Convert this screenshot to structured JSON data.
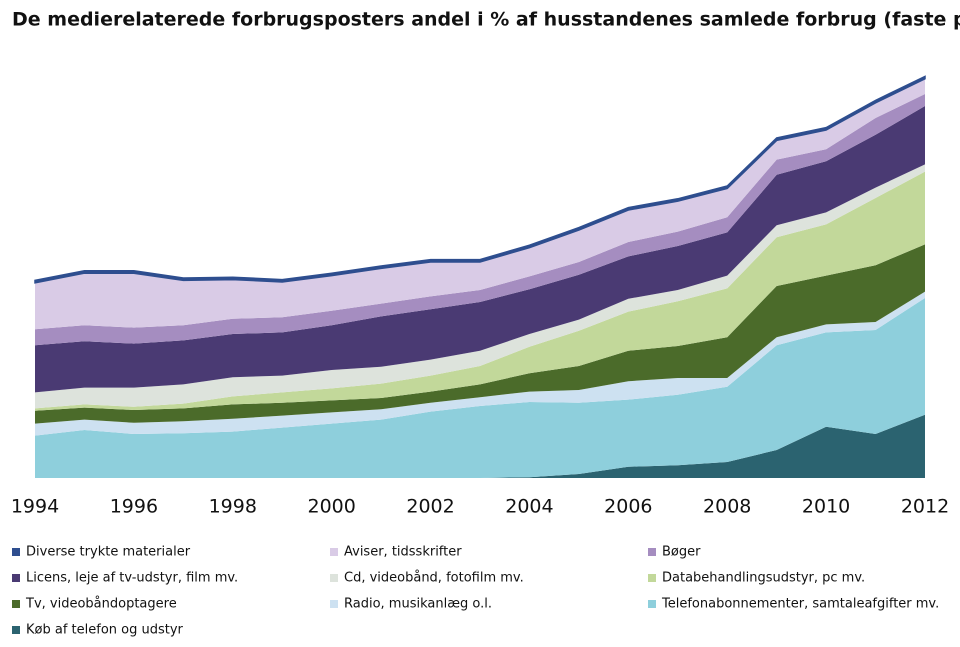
{
  "chart_data": {
    "type": "stacked-area",
    "title": "De medierelaterede forbrugsposters andel i % af husstandenes samlede forbrug (faste priser)",
    "x": [
      1994,
      1995,
      1996,
      1997,
      1998,
      1999,
      2000,
      2001,
      2002,
      2003,
      2004,
      2005,
      2006,
      2007,
      2008,
      2009,
      2010,
      2011,
      2012
    ],
    "xlim": [
      1994,
      2012
    ],
    "xticks": [
      1994,
      1996,
      1998,
      2000,
      2002,
      2004,
      2006,
      2008,
      2010,
      2012
    ],
    "ylim": [
      0,
      5.1
    ],
    "series": [
      {
        "name": "Diverse trykte materialer",
        "color": "#2e4e8f",
        "values": [
          0.03,
          0.03,
          0.03,
          0.03,
          0.03,
          0.03,
          0.03,
          0.03,
          0.03,
          0.03,
          0.03,
          0.03,
          0.03,
          0.03,
          0.03,
          0.03,
          0.03,
          0.03,
          0.03
        ]
      },
      {
        "name": "Aviser, tidsskrifter",
        "color": "#d9cbe6",
        "values": [
          0.58,
          0.65,
          0.68,
          0.56,
          0.49,
          0.44,
          0.44,
          0.44,
          0.43,
          0.35,
          0.36,
          0.4,
          0.4,
          0.38,
          0.36,
          0.24,
          0.24,
          0.19,
          0.19
        ]
      },
      {
        "name": "Bøger",
        "color": "#a58dc0",
        "values": [
          0.2,
          0.2,
          0.2,
          0.19,
          0.19,
          0.19,
          0.18,
          0.16,
          0.16,
          0.15,
          0.16,
          0.16,
          0.18,
          0.18,
          0.19,
          0.19,
          0.15,
          0.21,
          0.15
        ]
      },
      {
        "name": "Licens, leje af tv-udstyr, film mv.",
        "color": "#4a3a73",
        "values": [
          0.59,
          0.58,
          0.55,
          0.55,
          0.54,
          0.54,
          0.56,
          0.63,
          0.63,
          0.61,
          0.56,
          0.56,
          0.53,
          0.55,
          0.54,
          0.63,
          0.64,
          0.66,
          0.73
        ]
      },
      {
        "name": "Cd, videobånd, fotofilm mv.",
        "color": "#dde3dc",
        "values": [
          0.2,
          0.21,
          0.24,
          0.24,
          0.24,
          0.21,
          0.23,
          0.21,
          0.2,
          0.19,
          0.16,
          0.14,
          0.16,
          0.14,
          0.16,
          0.15,
          0.15,
          0.13,
          0.09
        ]
      },
      {
        "name": "Databehandlingsudstyr, pc mv.",
        "color": "#c2d89a",
        "values": [
          0.03,
          0.04,
          0.04,
          0.06,
          0.1,
          0.13,
          0.15,
          0.18,
          0.2,
          0.23,
          0.33,
          0.44,
          0.49,
          0.56,
          0.61,
          0.61,
          0.64,
          0.84,
          0.91
        ]
      },
      {
        "name": "Tv, videobåndoptagere",
        "color": "#4b6b2a",
        "values": [
          0.16,
          0.15,
          0.16,
          0.16,
          0.18,
          0.16,
          0.15,
          0.14,
          0.14,
          0.16,
          0.23,
          0.3,
          0.38,
          0.4,
          0.51,
          0.64,
          0.61,
          0.71,
          0.59
        ]
      },
      {
        "name": "Radio, musikanlæg o.l.",
        "color": "#cde1f1",
        "values": [
          0.15,
          0.13,
          0.14,
          0.15,
          0.16,
          0.15,
          0.14,
          0.13,
          0.11,
          0.11,
          0.13,
          0.16,
          0.23,
          0.21,
          0.11,
          0.1,
          0.1,
          0.1,
          0.08
        ]
      },
      {
        "name": "Telefonabonnementer, samtaleafgifter mv.",
        "color": "#8ecfdc",
        "values": [
          0.53,
          0.6,
          0.55,
          0.56,
          0.58,
          0.63,
          0.68,
          0.73,
          0.83,
          0.9,
          0.94,
          0.89,
          0.84,
          0.88,
          0.94,
          1.31,
          1.18,
          1.3,
          1.46
        ]
      },
      {
        "name": "Køb af telefon og udstyr",
        "color": "#2b6370",
        "values": [
          0,
          0,
          0,
          0,
          0,
          0,
          0,
          0,
          0,
          0,
          0.01,
          0.05,
          0.14,
          0.16,
          0.2,
          0.35,
          0.64,
          0.55,
          0.79
        ]
      }
    ]
  }
}
